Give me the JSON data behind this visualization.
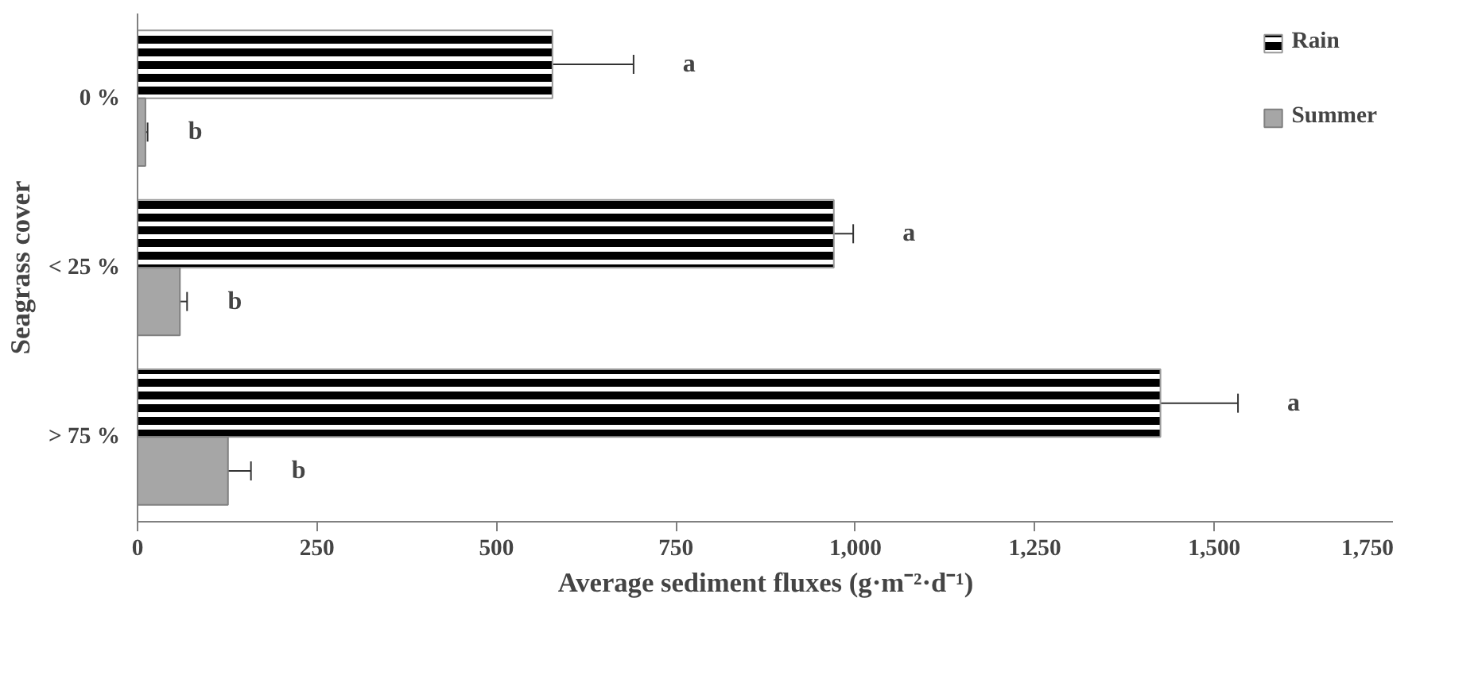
{
  "chart_data": {
    "type": "bar",
    "orientation": "horizontal",
    "xlabel": "Average sediment fluxes (g·m⁻²·d⁻¹)",
    "ylabel": "Seagrass cover",
    "categories": [
      "0 %",
      "< 25 %",
      "> 75 %"
    ],
    "series": [
      {
        "name": "Rain",
        "color": "#000000",
        "values": [
          578,
          970,
          1425
        ],
        "errors": [
          113,
          27,
          108
        ]
      },
      {
        "name": "Summer",
        "color": "#a6a6a6",
        "values": [
          11,
          59,
          126
        ],
        "errors": [
          3,
          10,
          32
        ]
      }
    ],
    "xlim": [
      0,
      1750
    ],
    "xticks": [
      0,
      250,
      500,
      750,
      {
        "value": 1000,
        "label": "1,000"
      },
      {
        "value": 1250,
        "label": "1,250"
      },
      {
        "value": 1500,
        "label": "1,500"
      },
      {
        "value": 1750,
        "label": "1,750"
      }
    ],
    "annotations": [
      "a",
      "b",
      "a",
      "b",
      "a",
      "b"
    ],
    "legend": "top right",
    "grid": false
  }
}
